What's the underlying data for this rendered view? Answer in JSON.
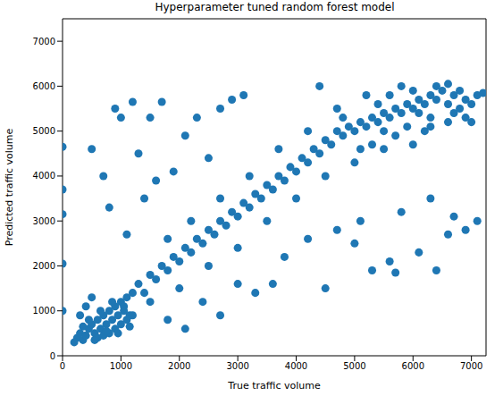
{
  "chart_data": {
    "type": "scatter",
    "title": "Hyperparameter tuned random forest model",
    "x_label": "True traffic volume",
    "y_label": "Predicted traffic volume",
    "color": "#1f77b4",
    "marker": "circle",
    "xlim": [
      0,
      7250
    ],
    "ylim": [
      0,
      7500
    ],
    "xticks": [
      0,
      1000,
      2000,
      3000,
      4000,
      5000,
      6000,
      7000
    ],
    "yticks": [
      0,
      1000,
      2000,
      3000,
      4000,
      5000,
      6000,
      7000
    ],
    "x": [
      250,
      300,
      350,
      400,
      450,
      500,
      550,
      600,
      650,
      700,
      750,
      800,
      850,
      900,
      950,
      1000,
      1050,
      1100,
      1150,
      1200,
      300,
      400,
      500,
      600,
      700,
      800,
      900,
      1000,
      1100,
      1200,
      1300,
      1400,
      1500,
      1600,
      1700,
      1800,
      1900,
      2000,
      2100,
      2200,
      2300,
      2400,
      2500,
      2600,
      2700,
      2800,
      2900,
      3000,
      3100,
      3200,
      3300,
      3400,
      3500,
      3600,
      3700,
      3800,
      3900,
      4000,
      4100,
      4200,
      4300,
      4400,
      4500,
      4600,
      4700,
      4800,
      4900,
      5000,
      5100,
      5200,
      5300,
      5400,
      5500,
      5600,
      5700,
      5800,
      5900,
      6000,
      6100,
      6200,
      6300,
      6400,
      6500,
      6600,
      6700,
      6800,
      6900,
      7000,
      7100,
      1500,
      1800,
      2000,
      2200,
      2500,
      2700,
      3000,
      3200,
      3500,
      3700,
      4000,
      4200,
      4500,
      4700,
      5000,
      5200,
      5500,
      5800,
      6000,
      6200,
      6400,
      6600,
      6800,
      7000,
      5300,
      5600,
      5900,
      6300,
      6700,
      0,
      0,
      0,
      0,
      0,
      500,
      700,
      900,
      1000,
      1200,
      1300,
      1500,
      1700,
      1900,
      2100,
      2300,
      2500,
      2700,
      2900,
      3100,
      800,
      1100,
      1400,
      1600,
      1800,
      2100,
      2400,
      2700,
      3000,
      3300,
      3600,
      3800,
      4200,
      4500,
      4700,
      5000,
      5300,
      5600,
      5700,
      6100,
      6400,
      6600,
      6900,
      7100,
      7200,
      4400,
      5100,
      6300,
      5800,
      6700,
      4800,
      5100,
      5400,
      5700,
      6000,
      6300,
      6600,
      6900,
      5500,
      6100,
      200,
      350,
      450,
      550,
      650,
      750,
      850,
      950,
      1050,
      1150
    ],
    "values": [
      400,
      500,
      350,
      450,
      600,
      700,
      500,
      800,
      600,
      900,
      700,
      1000,
      800,
      1100,
      900,
      1200,
      1000,
      1300,
      900,
      1400,
      900,
      1100,
      1300,
      400,
      450,
      500,
      600,
      700,
      800,
      900,
      1600,
      1400,
      1800,
      1700,
      2000,
      1900,
      2200,
      2100,
      2400,
      2300,
      2600,
      2500,
      2800,
      2700,
      3000,
      2900,
      3200,
      3100,
      3400,
      3300,
      3600,
      3500,
      3800,
      3700,
      4000,
      3900,
      4200,
      4100,
      4400,
      4300,
      4600,
      4500,
      4800,
      4700,
      5000,
      4900,
      5100,
      5000,
      5200,
      5100,
      5300,
      5200,
      5400,
      5300,
      5500,
      5400,
      5600,
      5500,
      5700,
      5600,
      5800,
      5700,
      5900,
      5600,
      5800,
      5500,
      5700,
      5600,
      5800,
      1200,
      2600,
      1500,
      3000,
      2000,
      3500,
      2400,
      4000,
      3000,
      4600,
      3500,
      5000,
      4000,
      5500,
      4300,
      5800,
      4600,
      6000,
      4700,
      5000,
      6000,
      5200,
      5900,
      5200,
      4700,
      5800,
      5100,
      5300,
      5400,
      4650,
      3700,
      3150,
      2050,
      1000,
      4600,
      4000,
      5500,
      5300,
      5650,
      4500,
      5300,
      5650,
      4100,
      4900,
      5300,
      4400,
      5500,
      5700,
      5800,
      3300,
      2700,
      3500,
      3900,
      800,
      600,
      1200,
      900,
      1600,
      1400,
      1600,
      2200,
      2600,
      1500,
      2800,
      2500,
      1900,
      2100,
      1850,
      2300,
      1900,
      2700,
      2800,
      3000,
      5850,
      6000,
      3000,
      3500,
      3200,
      3100,
      5300,
      4600,
      5600,
      4900,
      5900,
      5100,
      6050,
      5300,
      5000,
      5400,
      300,
      650,
      800,
      350,
      1000,
      550,
      1200,
      500,
      1100,
      650
    ]
  }
}
